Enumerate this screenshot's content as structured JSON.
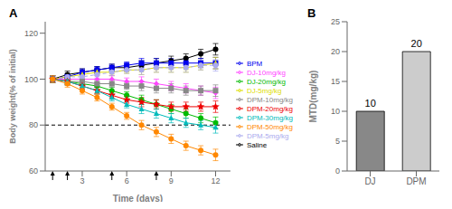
{
  "chart_data": [
    {
      "type": "line",
      "title": "A",
      "x_label": "Time (days)",
      "y_label": "Body weight(% of initial)",
      "xlim": [
        0.5,
        13
      ],
      "ylim": [
        60,
        125
      ],
      "xticks": [
        3,
        6,
        9,
        12
      ],
      "yticks": [
        60,
        80,
        100,
        120
      ],
      "legend": "right",
      "hline": 80,
      "arrows_x": [
        1,
        2,
        5,
        8
      ],
      "series": [
        {
          "name": "Saline",
          "color": "#000000",
          "marker": "circle",
          "line_style": "solid",
          "x": [
            1,
            2,
            3,
            4,
            5,
            6,
            7,
            8,
            9,
            10,
            11,
            12
          ],
          "values": [
            100,
            102,
            103,
            104,
            105,
            105,
            106,
            107,
            108,
            109,
            111,
            113
          ],
          "errors": [
            1.5,
            1.5,
            1.5,
            1.5,
            1.5,
            1.5,
            2,
            2,
            2,
            2,
            2,
            2.5
          ]
        },
        {
          "name": "BPM",
          "color": "#0000EE",
          "marker": "square",
          "line_style": "solid",
          "x": [
            1,
            2,
            3,
            4,
            5,
            6,
            7,
            8,
            9,
            10,
            11,
            12
          ],
          "values": [
            100,
            101,
            103,
            104,
            105,
            106,
            107,
            107,
            107,
            107,
            107,
            107
          ],
          "errors": [
            1.5,
            1.5,
            1.5,
            1.5,
            1.5,
            1.5,
            2,
            2,
            2,
            2,
            2,
            2.5
          ]
        },
        {
          "name": "DJ-5mg/kg",
          "color": "#DDDD00",
          "marker": "triangle",
          "line_style": "solid",
          "x": [
            1,
            2,
            3,
            4,
            5,
            6,
            7,
            8,
            9,
            10,
            11,
            12
          ],
          "values": [
            100,
            101,
            102,
            103,
            103,
            104,
            104,
            105,
            105,
            105,
            106,
            107
          ],
          "errors": [
            1.5,
            1.5,
            1.5,
            1.5,
            1.5,
            1.5,
            2,
            2,
            2,
            2,
            2,
            2.5
          ]
        },
        {
          "name": "DJ-10mg/kg",
          "color": "#FF44FF",
          "marker": "diamond",
          "line_style": "solid",
          "x": [
            1,
            2,
            3,
            4,
            5,
            6,
            7,
            8,
            9,
            10,
            11,
            12
          ],
          "values": [
            100,
            100,
            100,
            100,
            100,
            99,
            99,
            98,
            97,
            96,
            95,
            94
          ],
          "errors": [
            1.5,
            1.5,
            1.5,
            1.5,
            1.5,
            1.5,
            2,
            2,
            2,
            2,
            2,
            2.5
          ]
        },
        {
          "name": "DJ-20mg/kg",
          "color": "#00BB00",
          "marker": "circle",
          "line_style": "solid",
          "x": [
            1,
            2,
            3,
            4,
            5,
            6,
            7,
            8,
            9,
            10,
            11,
            12
          ],
          "values": [
            100,
            99,
            98,
            97,
            95,
            93,
            91,
            89,
            87,
            85,
            83,
            81
          ],
          "errors": [
            1.5,
            1.5,
            1.5,
            1.5,
            1.5,
            1.5,
            2,
            2,
            2,
            2,
            2,
            2.5
          ]
        },
        {
          "name": "DPM-5mg/kg",
          "color": "#AAAAEE",
          "marker": "circle",
          "line_style": "dashed",
          "x": [
            1,
            2,
            3,
            4,
            5,
            6,
            7,
            8,
            9,
            10,
            11,
            12
          ],
          "values": [
            100,
            101,
            101,
            102,
            103,
            104,
            104,
            105,
            105,
            105,
            106,
            106
          ],
          "errors": [
            1.5,
            1.5,
            1.5,
            1.5,
            1.5,
            1.5,
            2,
            2,
            2,
            2,
            2,
            2.5
          ]
        },
        {
          "name": "DPM-10mg/kg",
          "color": "#888888",
          "marker": "square",
          "line_style": "solid",
          "x": [
            1,
            2,
            3,
            4,
            5,
            6,
            7,
            8,
            9,
            10,
            11,
            12
          ],
          "values": [
            100,
            99,
            99,
            98,
            98,
            97,
            97,
            96,
            96,
            95,
            95,
            95
          ],
          "errors": [
            1.5,
            1.5,
            1.5,
            1.5,
            1.5,
            1.5,
            2,
            2,
            2,
            2,
            2,
            2.5
          ]
        },
        {
          "name": "DPM-20mg/kg",
          "color": "#EE0000",
          "marker": "star",
          "line_style": "solid",
          "x": [
            1,
            2,
            3,
            4,
            5,
            6,
            7,
            8,
            9,
            10,
            11,
            12
          ],
          "values": [
            100,
            99,
            97,
            95,
            93,
            91,
            90,
            89,
            88,
            88,
            88,
            88
          ],
          "errors": [
            1.5,
            1.5,
            1.5,
            1.5,
            1.5,
            1.5,
            2,
            2,
            2,
            2,
            2,
            2.5
          ]
        },
        {
          "name": "DPM-30mg/kg",
          "color": "#00BBBB",
          "marker": "triangle",
          "line_style": "solid",
          "x": [
            1,
            2,
            3,
            4,
            5,
            6,
            7,
            8,
            9,
            10,
            11,
            12
          ],
          "values": [
            100,
            99,
            97,
            95,
            92,
            89,
            87,
            85,
            83,
            81,
            80,
            79
          ],
          "errors": [
            1.5,
            1.5,
            1.5,
            1.5,
            1.5,
            1.5,
            2,
            2,
            2,
            2,
            2,
            2.5
          ]
        },
        {
          "name": "DPM-50mg/kg",
          "color": "#FF8800",
          "marker": "circle",
          "line_style": "solid",
          "x": [
            1,
            2,
            3,
            4,
            5,
            6,
            7,
            8,
            9,
            10,
            11,
            12
          ],
          "values": [
            100,
            98,
            95,
            92,
            88,
            84,
            80,
            77,
            74,
            71,
            69,
            67
          ],
          "errors": [
            1.5,
            1.5,
            1.5,
            1.5,
            1.5,
            1.5,
            2,
            2,
            2,
            2,
            2,
            2.5
          ]
        }
      ]
    },
    {
      "type": "bar",
      "title": "B",
      "y_label": "MTD(mg/kg)",
      "categories": [
        "DJ",
        "DPM"
      ],
      "values": [
        10,
        20
      ],
      "colors": [
        "#888888",
        "#cccccc"
      ],
      "ylim": [
        0,
        25
      ],
      "yticks": [
        0,
        5,
        10,
        15,
        20,
        25
      ],
      "data_labels": true
    }
  ]
}
